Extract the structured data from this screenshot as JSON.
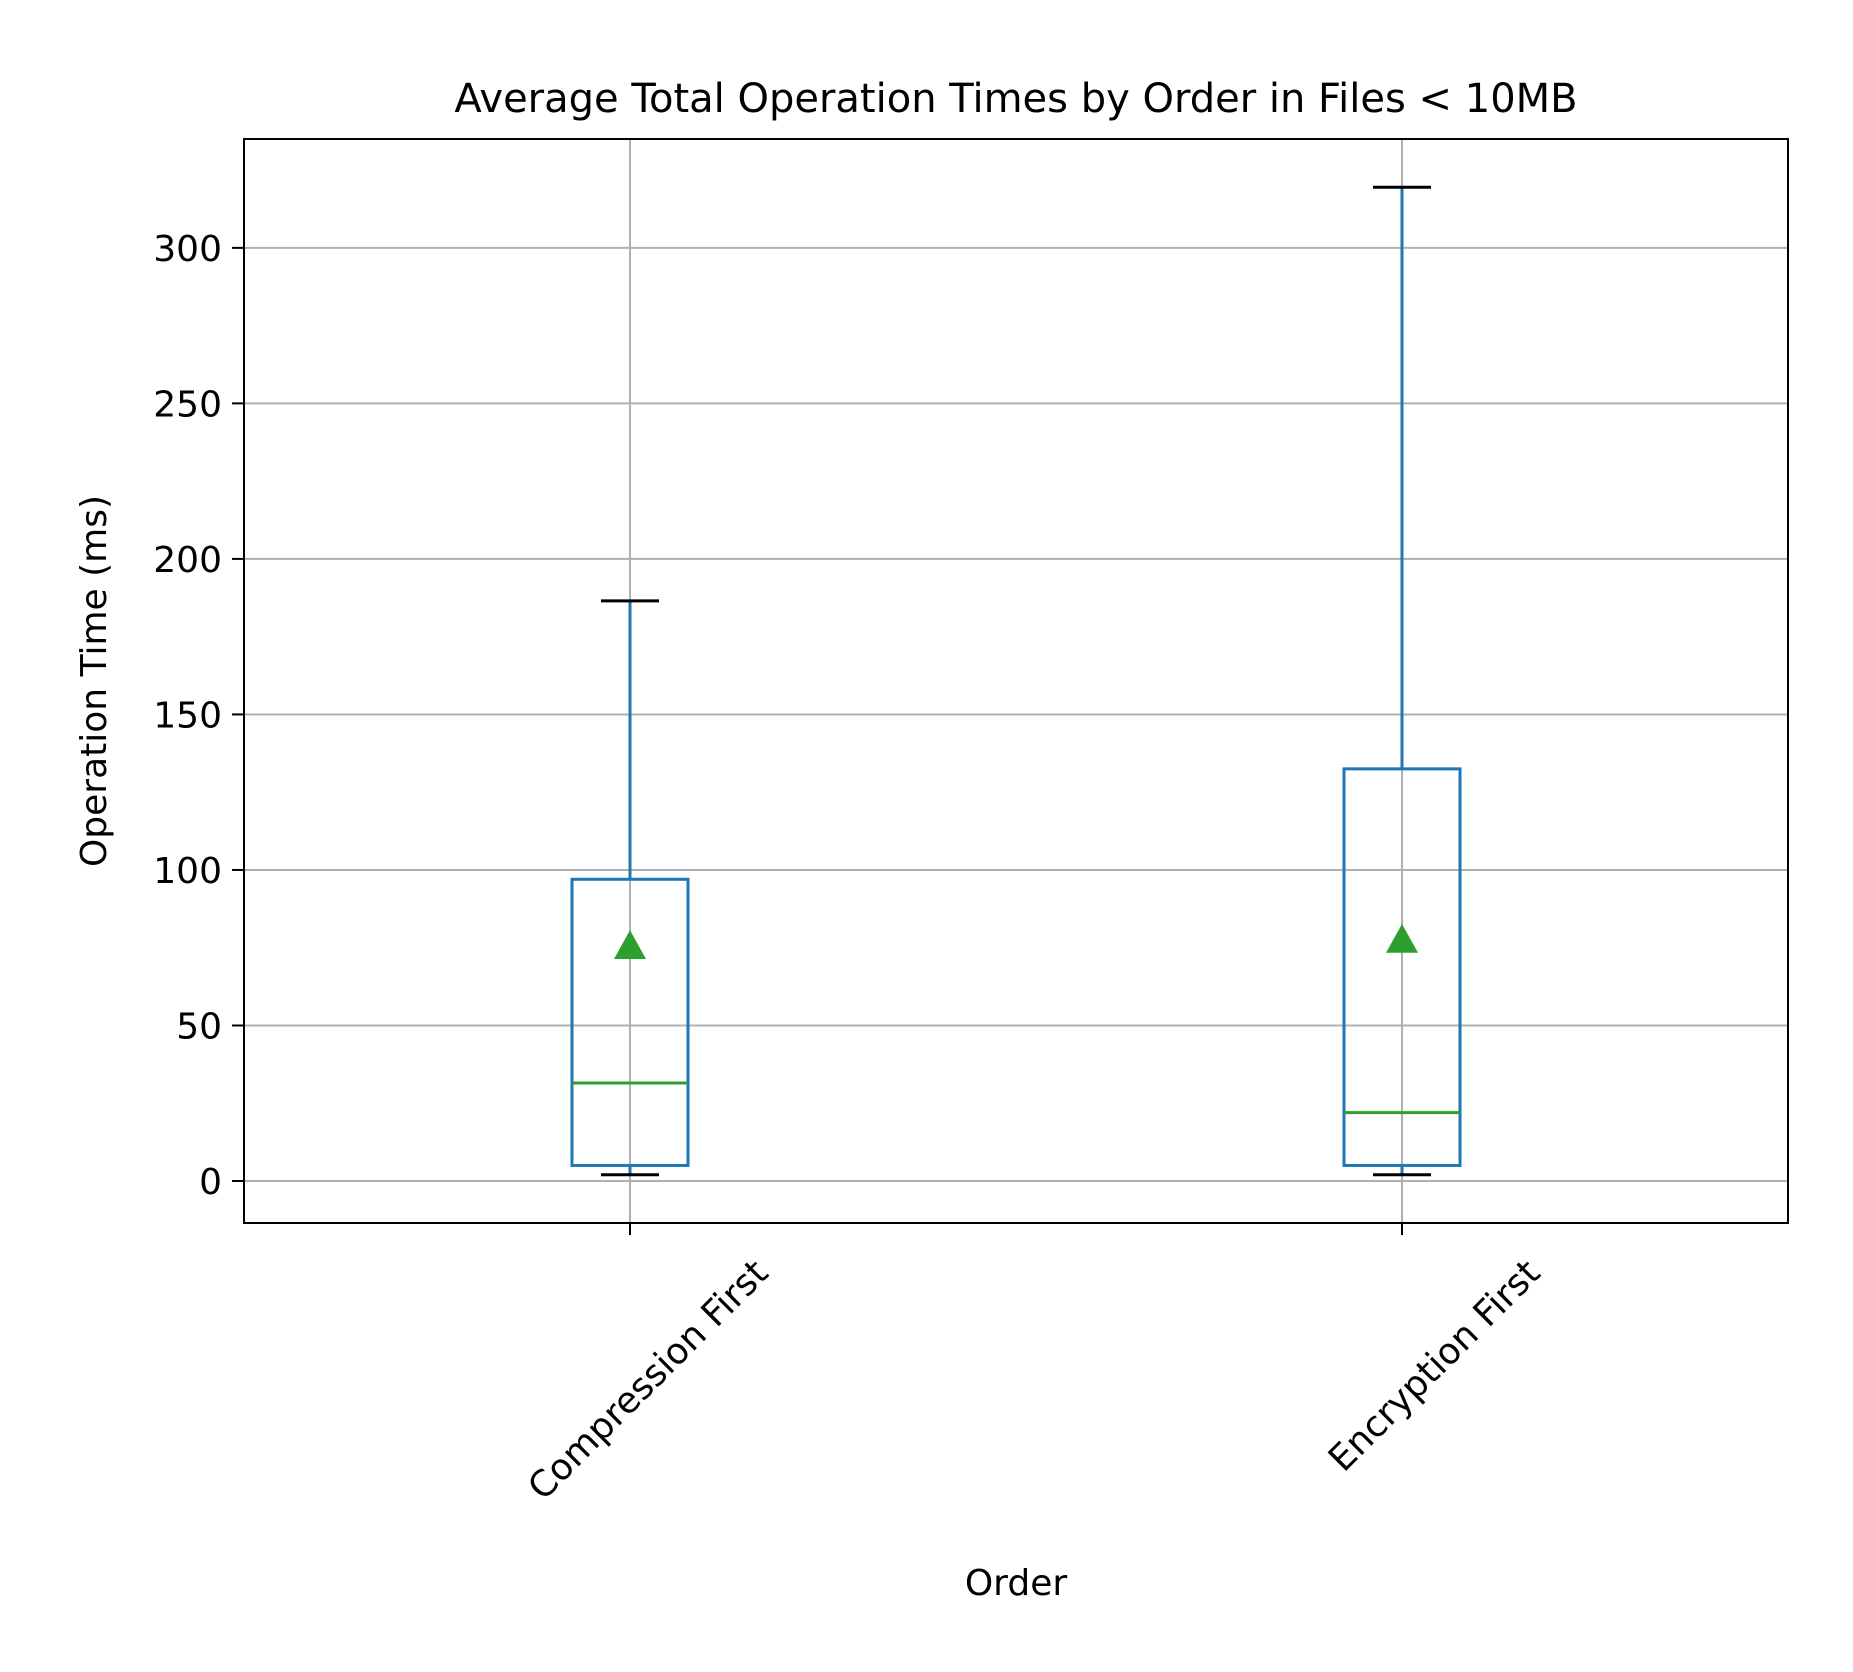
{
  "chart_data": {
    "type": "box",
    "title": "Average Total Operation Times by Order in Files < 10MB",
    "xlabel": "Order",
    "ylabel": "Operation Time (ms)",
    "categories": [
      "Compression First",
      "Encryption First"
    ],
    "ylim": [
      -13.5,
      335
    ],
    "yticks": [
      0,
      50,
      100,
      150,
      200,
      250,
      300
    ],
    "grid": true,
    "boxes": [
      {
        "category": "Compression First",
        "whisker_low": 2,
        "q1": 5,
        "median": 31.5,
        "q3": 97,
        "whisker_high": 186.5,
        "mean": 75.5
      },
      {
        "category": "Encryption First",
        "whisker_low": 2,
        "q1": 5,
        "median": 22,
        "q3": 132.5,
        "whisker_high": 319.5,
        "mean": 77.5
      }
    ],
    "colors": {
      "box": "#1f77b4",
      "median": "#2ca02c",
      "mean": "#2ca02c",
      "cap": "#000000",
      "grid": "#b0b0b0",
      "axes": "#000000"
    }
  }
}
